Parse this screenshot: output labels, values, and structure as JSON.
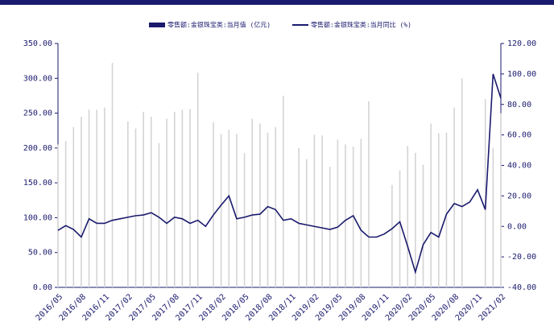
{
  "chart_data": {
    "type": "bar_line",
    "categories": [
      "2016/05",
      null,
      null,
      "2016/08",
      null,
      null,
      "2016/11",
      null,
      null,
      "2017/02",
      null,
      null,
      "2017/05",
      null,
      null,
      "2017/08",
      null,
      null,
      "2017/11",
      null,
      null,
      "2018/02",
      null,
      null,
      "2018/05",
      null,
      null,
      "2018/08",
      null,
      null,
      "2018/11",
      null,
      null,
      "2019/02",
      null,
      null,
      "2019/05",
      null,
      null,
      "2019/08",
      null,
      null,
      "2019/11",
      null,
      null,
      "2020/02",
      null,
      null,
      "2020/05",
      null,
      null,
      "2020/08",
      null,
      null,
      "2020/11",
      null,
      null,
      "2021/02"
    ],
    "series": [
      {
        "name": "零售额:金银珠宝类:当月值 (亿元)",
        "color": "#d4d4d4",
        "values": [
          205,
          210,
          230,
          245,
          255,
          255,
          258,
          322,
          null,
          238,
          228,
          252,
          245,
          207,
          242,
          252,
          255,
          256,
          308,
          null,
          237,
          220,
          226,
          220,
          193,
          242,
          235,
          222,
          230,
          275,
          null,
          200,
          184,
          219,
          218,
          173,
          212,
          205,
          202,
          213,
          267,
          null,
          null,
          147,
          168,
          203,
          193,
          176,
          235,
          221,
          222,
          258,
          300,
          null,
          null,
          270,
          200,
          250
        ]
      },
      {
        "name": "零售额:金银珠宝类:当月同比 (%)",
        "color": "#1a1a6e",
        "axis": "y2",
        "values": [
          -2.6,
          0.5,
          -2,
          -7,
          5,
          2,
          2,
          4,
          5,
          6,
          7,
          7.5,
          9,
          6,
          2,
          6,
          5,
          2,
          4,
          0,
          7.5,
          14,
          20,
          5,
          6,
          7.5,
          8,
          13,
          11,
          4,
          5,
          2,
          1,
          0,
          -1,
          -2,
          -0.5,
          4,
          7,
          -2.5,
          -7,
          -7,
          -5,
          -1.5,
          3,
          -13,
          -30,
          -12,
          -4,
          -7,
          8,
          15,
          13,
          16,
          24,
          11,
          100,
          84
        ]
      }
    ],
    "ylim": [
      0,
      350
    ],
    "yticks": [
      {
        "value": 0,
        "label": "0.00"
      },
      {
        "value": 50,
        "label": "50.00"
      },
      {
        "value": 100,
        "label": "100.00"
      },
      {
        "value": 150,
        "label": "150.00"
      },
      {
        "value": 200,
        "label": "200.00"
      },
      {
        "value": 250,
        "label": "250.00"
      },
      {
        "value": 300,
        "label": "300.00"
      },
      {
        "value": 350,
        "label": "350.00"
      }
    ],
    "y2lim": [
      -40,
      120
    ],
    "y2ticks": [
      {
        "value": -40,
        "label": "-40.00"
      },
      {
        "value": -20,
        "label": "-20.00"
      },
      {
        "value": 0,
        "label": "0.00"
      },
      {
        "value": 20,
        "label": "20.00"
      },
      {
        "value": 40,
        "label": "40.00"
      },
      {
        "value": 60,
        "label": "60.00"
      },
      {
        "value": 80,
        "label": "80.00"
      },
      {
        "value": 100,
        "label": "100.00"
      },
      {
        "value": 120,
        "label": "120.00"
      }
    ],
    "legend": "top"
  }
}
